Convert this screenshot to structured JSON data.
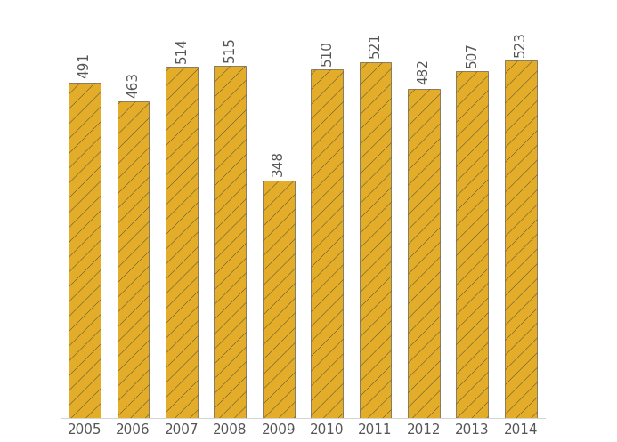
{
  "chart_data": {
    "type": "bar",
    "categories": [
      "2005",
      "2006",
      "2007",
      "2008",
      "2009",
      "2010",
      "2011",
      "2012",
      "2013",
      "2014"
    ],
    "values": [
      491,
      463,
      514,
      515,
      348,
      510,
      521,
      482,
      507,
      523
    ],
    "color": "#e3ad2a",
    "ylim": [
      0,
      560
    ],
    "data_labels": true,
    "tick_labels": "x",
    "grid": false
  }
}
